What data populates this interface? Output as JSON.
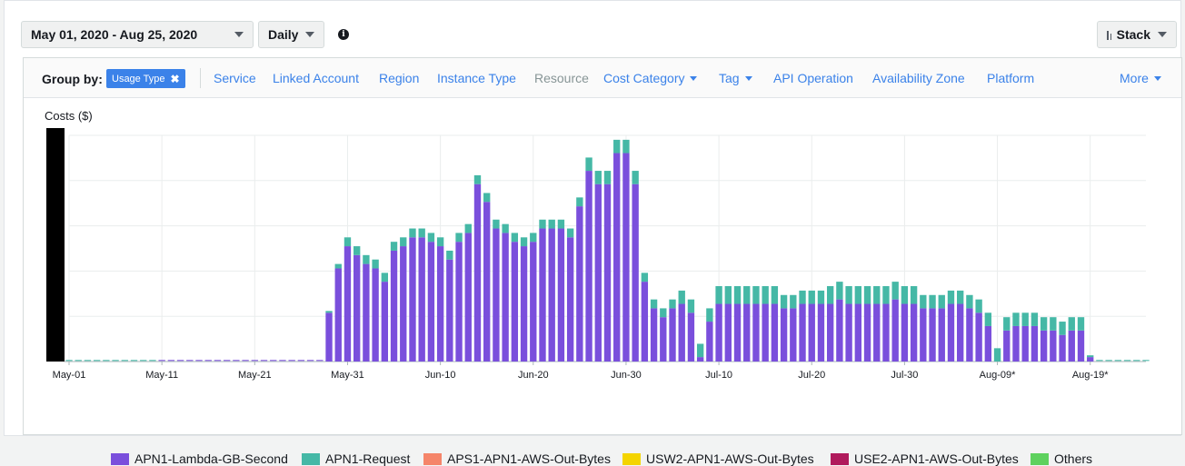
{
  "toolbar": {
    "date_range": "May 01, 2020 - Aug 25, 2020",
    "granularity": "Daily",
    "info_icon": "i",
    "chart_style": "Stack"
  },
  "group_by": {
    "label": "Group by:",
    "selected_tag": "Usage Type",
    "tag_remove": "✖",
    "options": [
      "Service",
      "Linked Account",
      "Region",
      "Instance Type",
      "Resource",
      "Cost Category",
      "Tag",
      "API Operation",
      "Availability Zone",
      "Platform",
      "More"
    ]
  },
  "chart_data": {
    "type": "bar",
    "stacked": true,
    "ylabel": "Costs ($)",
    "y_tick_labels_visible": false,
    "xlabel": "",
    "x_tick_labels": [
      "May-01",
      "May-11",
      "May-21",
      "May-31",
      "Jun-10",
      "Jun-20",
      "Jun-30",
      "Jul-10",
      "Jul-20",
      "Jul-30",
      "Aug-09*",
      "Aug-19*"
    ],
    "start_date": "2020-05-01",
    "end_date": "2020-08-25",
    "grid": true,
    "legend_position": "bottom",
    "ylim": [
      0,
      255
    ],
    "series": [
      {
        "name": "APN1-Lambda-GB-Second",
        "color": "#7a4fdc",
        "values": [
          0,
          0,
          0,
          0,
          0,
          0,
          0,
          0,
          0,
          0,
          0,
          0,
          0,
          0,
          0,
          0,
          0,
          0,
          0,
          0,
          0,
          0,
          0,
          0,
          0,
          0,
          0,
          0,
          55,
          105,
          130,
          120,
          110,
          105,
          90,
          125,
          130,
          140,
          140,
          135,
          130,
          115,
          135,
          145,
          200,
          180,
          150,
          145,
          135,
          130,
          135,
          150,
          150,
          150,
          140,
          175,
          215,
          200,
          200,
          235,
          235,
          200,
          90,
          60,
          50,
          60,
          65,
          55,
          5,
          45,
          65,
          65,
          65,
          65,
          65,
          65,
          65,
          60,
          60,
          65,
          65,
          65,
          65,
          70,
          65,
          65,
          65,
          65,
          65,
          70,
          65,
          65,
          60,
          60,
          60,
          65,
          65,
          60,
          55,
          40,
          0,
          35,
          40,
          40,
          40,
          35,
          35,
          30,
          35,
          35,
          5,
          0,
          0,
          0,
          0,
          0,
          0,
          0,
          0,
          0,
          0,
          0,
          0,
          0,
          0,
          0,
          0,
          0
        ]
      },
      {
        "name": "APN1-Request",
        "color": "#45b8a6",
        "values": [
          0,
          0,
          0,
          0,
          0,
          0,
          0,
          0,
          0,
          0,
          0,
          0,
          0,
          0,
          0,
          0,
          0,
          0,
          0,
          0,
          0,
          0,
          0,
          0,
          0,
          0,
          0,
          0,
          2,
          5,
          10,
          10,
          10,
          10,
          10,
          10,
          10,
          10,
          10,
          10,
          10,
          10,
          10,
          10,
          10,
          10,
          10,
          10,
          10,
          10,
          10,
          10,
          10,
          10,
          10,
          10,
          15,
          15,
          15,
          15,
          15,
          15,
          10,
          10,
          10,
          10,
          15,
          15,
          15,
          15,
          20,
          20,
          20,
          20,
          20,
          20,
          20,
          15,
          15,
          15,
          15,
          15,
          20,
          20,
          20,
          20,
          20,
          20,
          20,
          20,
          20,
          20,
          15,
          15,
          15,
          15,
          15,
          15,
          15,
          15,
          15,
          15,
          15,
          15,
          15,
          15,
          15,
          15,
          15,
          15,
          2,
          0,
          0,
          0,
          0,
          0,
          0,
          0,
          0,
          0,
          0,
          0,
          0,
          0,
          0,
          0,
          0,
          0
        ]
      },
      {
        "name": "APS1-APN1-AWS-Out-Bytes",
        "color": "#f5856a",
        "values": []
      },
      {
        "name": "USW2-APN1-AWS-Out-Bytes",
        "color": "#f4d400",
        "values": []
      },
      {
        "name": "USE2-APN1-AWS-Out-Bytes",
        "color": "#b01a5c",
        "values": []
      },
      {
        "name": "Others",
        "color": "#5ed15e",
        "values": []
      }
    ]
  }
}
